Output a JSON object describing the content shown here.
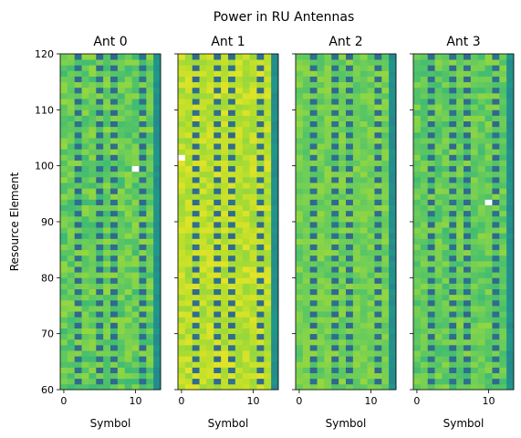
{
  "chart_data": {
    "type": "heatmap",
    "title": "Power in RU Antennas",
    "ylabel": "Resource Element",
    "xlabel": "Symbol",
    "x_range": [
      -0.5,
      13.5
    ],
    "y_range": [
      60,
      120
    ],
    "x_ticks": [
      0,
      10
    ],
    "y_ticks": [
      60,
      70,
      80,
      90,
      100,
      110,
      120
    ],
    "symbols": 14,
    "resource_elements": {
      "first": 60,
      "count": 60
    },
    "colormap": "viridis",
    "dmrs_symbols": [
      2,
      5,
      7,
      11
    ],
    "dmrs_value": 0.35,
    "edge_symbol": 13,
    "edge_value": 0.5,
    "panels": [
      {
        "title": "Ant 0",
        "base_level": 0.76,
        "variation": 0.08,
        "white_cell": {
          "symbol": 10,
          "re": 99
        }
      },
      {
        "title": "Ant 1",
        "base_level": 0.9,
        "variation": 0.06,
        "white_cell": {
          "symbol": 0,
          "re": 101
        }
      },
      {
        "title": "Ant 2",
        "base_level": 0.78,
        "variation": 0.06,
        "white_cell": null
      },
      {
        "title": "Ant 3",
        "base_level": 0.76,
        "variation": 0.07,
        "white_cell": {
          "symbol": 10,
          "re": 93
        }
      }
    ]
  }
}
